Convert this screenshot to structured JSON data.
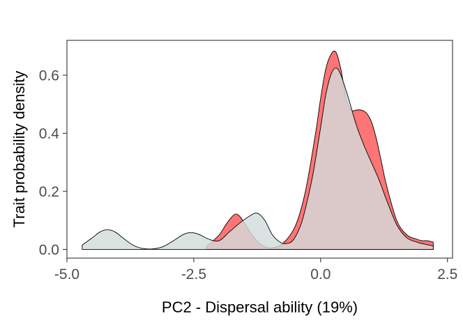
{
  "chart_data": {
    "type": "area",
    "title": "",
    "xlabel": "PC2 - Dispersal ability (19%)",
    "ylabel": "Trait probability density",
    "xlim": [
      -5.0,
      2.6
    ],
    "ylim": [
      -0.03,
      0.72
    ],
    "x_ticks": [
      -5.0,
      -2.5,
      0.0,
      2.5
    ],
    "x_tick_labels": [
      "-5.0",
      "-2.5",
      "0.0",
      "2.5"
    ],
    "y_ticks": [
      0.0,
      0.2,
      0.4,
      0.6
    ],
    "y_tick_labels": [
      "0.0",
      "0.2",
      "0.4",
      "0.6"
    ],
    "grid": false,
    "legend": "none",
    "series": [
      {
        "color": "#f8766d",
        "fill_color": "#ff5c5c",
        "fill_opacity": 0.85,
        "x": [
          -2.25,
          -2.0,
          -1.85,
          -1.7,
          -1.6,
          -1.5,
          -1.35,
          -1.2,
          -1.0,
          -0.75,
          -0.5,
          -0.3,
          -0.1,
          0.0,
          0.1,
          0.2,
          0.3,
          0.4,
          0.5,
          0.6,
          0.7,
          0.8,
          0.9,
          1.0,
          1.1,
          1.2,
          1.3,
          1.5,
          1.7,
          1.9,
          2.0,
          2.1,
          2.22
        ],
        "y": [
          0.01,
          0.05,
          0.09,
          0.12,
          0.115,
          0.09,
          0.05,
          0.02,
          0.005,
          0.02,
          0.08,
          0.2,
          0.4,
          0.52,
          0.62,
          0.67,
          0.68,
          0.62,
          0.52,
          0.48,
          0.48,
          0.48,
          0.47,
          0.44,
          0.38,
          0.3,
          0.22,
          0.1,
          0.05,
          0.035,
          0.03,
          0.03,
          0.025
        ]
      },
      {
        "color": "#c8d0d0",
        "fill_color": "#d3dcdc",
        "fill_opacity": 0.82,
        "x": [
          -4.7,
          -4.5,
          -4.35,
          -4.2,
          -4.05,
          -3.9,
          -3.7,
          -3.5,
          -3.3,
          -3.1,
          -2.9,
          -2.7,
          -2.55,
          -2.4,
          -2.2,
          -2.0,
          -1.8,
          -1.6,
          -1.4,
          -1.25,
          -1.1,
          -0.95,
          -0.8,
          -0.7,
          -0.55,
          -0.4,
          -0.3,
          -0.15,
          0.0,
          0.1,
          0.2,
          0.3,
          0.4,
          0.55,
          0.7,
          0.85,
          1.0,
          1.15,
          1.3,
          1.5,
          1.7,
          1.9,
          2.05,
          2.22
        ],
        "y": [
          0.015,
          0.04,
          0.06,
          0.068,
          0.06,
          0.04,
          0.015,
          0.003,
          0.002,
          0.01,
          0.03,
          0.052,
          0.058,
          0.052,
          0.035,
          0.03,
          0.06,
          0.09,
          0.115,
          0.125,
          0.1,
          0.05,
          0.025,
          0.02,
          0.03,
          0.08,
          0.14,
          0.26,
          0.42,
          0.53,
          0.6,
          0.625,
          0.6,
          0.52,
          0.43,
          0.36,
          0.3,
          0.24,
          0.17,
          0.085,
          0.04,
          0.025,
          0.018,
          0.012
        ]
      }
    ]
  }
}
